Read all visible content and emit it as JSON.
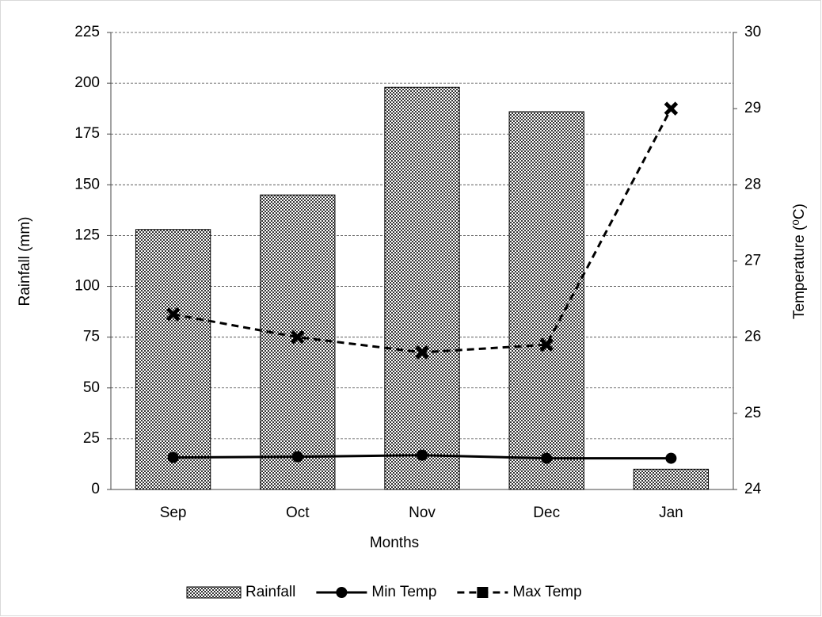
{
  "chart_data": {
    "type": "bar_line",
    "x_label": "Months",
    "y_label": "Rainfall (mm)",
    "y2_label": "Temperature (⁰C)",
    "categories": [
      "Sep",
      "Oct",
      "Nov",
      "Dec",
      "Jan"
    ],
    "series": [
      {
        "name": "Rainfall",
        "type": "bar",
        "color": "#000000",
        "values": [
          128,
          145,
          198,
          186,
          10
        ]
      },
      {
        "name": "Min Temp",
        "type": "line",
        "axis": "y2",
        "color": "#000000",
        "dash": false,
        "marker": "circle",
        "values": [
          24.42,
          24.43,
          24.45,
          24.41,
          24.41
        ]
      },
      {
        "name": "Max Temp",
        "type": "line",
        "axis": "y2",
        "color": "#000000",
        "dash": true,
        "marker": "x",
        "values": [
          26.3,
          26.0,
          25.8,
          25.9,
          29.0
        ]
      }
    ],
    "ylim": [
      0,
      225
    ],
    "yticks": [
      0,
      25,
      50,
      75,
      100,
      125,
      150,
      175,
      200,
      225
    ],
    "y2lim": [
      24,
      30
    ],
    "y2ticks": [
      24,
      25,
      26,
      27,
      28,
      29,
      30
    ],
    "grid": true,
    "legend": "bottom"
  }
}
